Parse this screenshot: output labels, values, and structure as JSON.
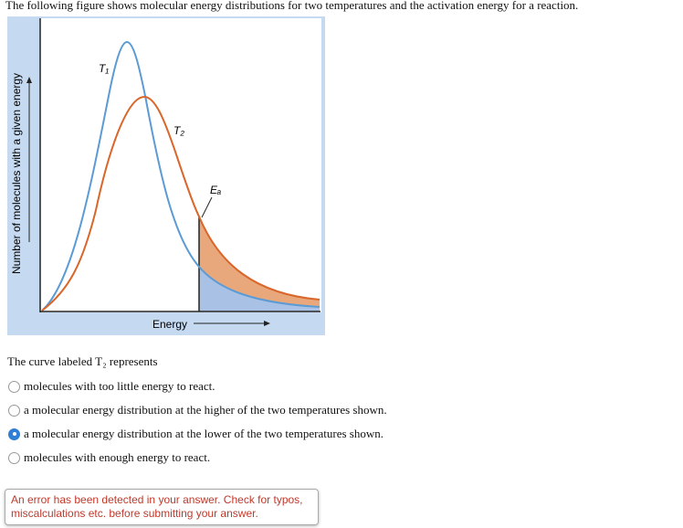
{
  "intro": "The following figure shows molecular energy distributions for two temperatures and the activation energy for a reaction.",
  "figure": {
    "y_axis_label": "Number of molecules with a given energy",
    "x_axis_label": "Energy",
    "curve_1_label": "T₁",
    "curve_2_label": "T₂",
    "activation_label": "Eₐ"
  },
  "question": "The curve labeled T₂ represents",
  "options": [
    "molecules with too little energy to react.",
    "a molecular energy distribution at the higher of the two temperatures shown.",
    "a molecular energy distribution at the lower of the two temperatures shown.",
    "molecules with enough energy to react."
  ],
  "error_message": "An error has been detected in your answer. Check for typos, miscalculations etc. before submitting your answer."
}
